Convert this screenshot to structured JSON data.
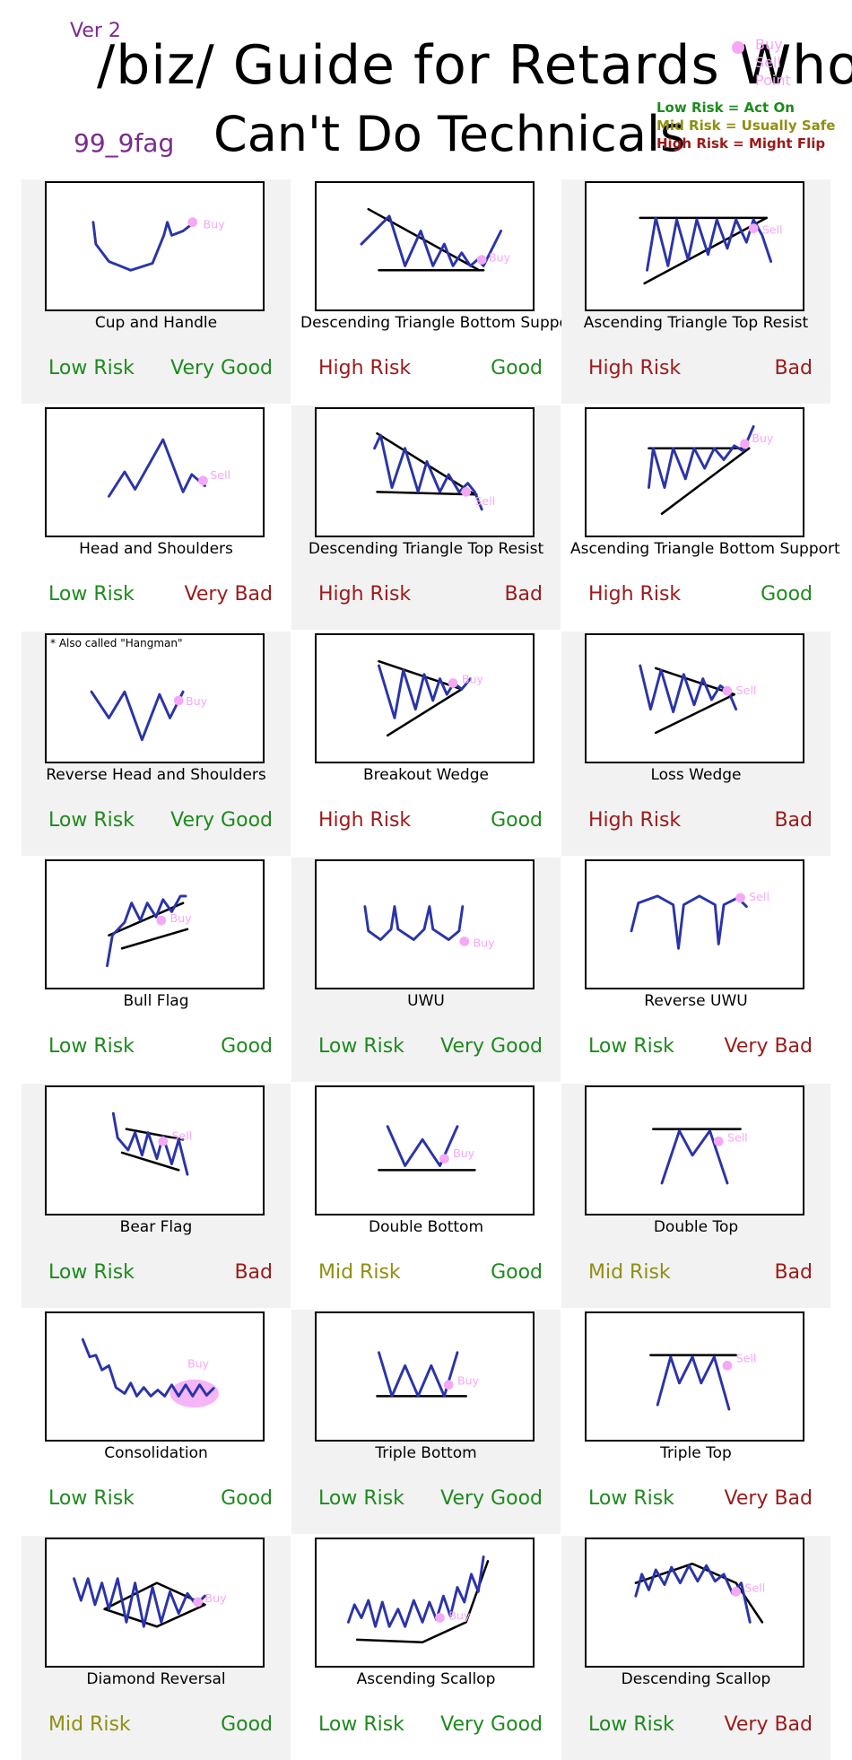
{
  "header": {
    "version": "Ver 2",
    "author": "99_9fag",
    "title_line1": "/biz/ Guide for Retards Who",
    "title_line2": "Can't Do Technicals",
    "point_legend": [
      "Buy",
      "Sell",
      "Point"
    ],
    "risk_legend": [
      {
        "text": "Low Risk = Act On",
        "color": "#1e8a1e"
      },
      {
        "text": "Mid Risk = Usually Safe",
        "color": "#8f8f12"
      },
      {
        "text": "High Risk = Might Flip",
        "color": "#9b1a1a"
      }
    ]
  },
  "colors": {
    "low": "#1e8a1e",
    "mid": "#8f8f12",
    "high": "#9b1a1a",
    "good": "#1e8a1e",
    "bad": "#9b1a1a",
    "line": "#2a34a8",
    "point": "#f5a8f5"
  },
  "patterns": [
    {
      "name": "Cup and Handle",
      "risk": "Low Risk",
      "risk_level": "low",
      "verdict": "Very Good",
      "verdict_kind": "good",
      "signal": "Buy"
    },
    {
      "name": "Descending Triangle Bottom Support",
      "risk": "High Risk",
      "risk_level": "high",
      "verdict": "Good",
      "verdict_kind": "good",
      "signal": "Buy"
    },
    {
      "name": "Ascending Triangle Top Resist",
      "risk": "High Risk",
      "risk_level": "high",
      "verdict": "Bad",
      "verdict_kind": "bad",
      "signal": "Sell"
    },
    {
      "name": "Head and Shoulders",
      "risk": "Low Risk",
      "risk_level": "low",
      "verdict": "Very Bad",
      "verdict_kind": "bad",
      "signal": "Sell"
    },
    {
      "name": "Descending Triangle Top Resist",
      "risk": "High Risk",
      "risk_level": "high",
      "verdict": "Bad",
      "verdict_kind": "bad",
      "signal": "Sell"
    },
    {
      "name": "Ascending Triangle Bottom Support",
      "risk": "High Risk",
      "risk_level": "high",
      "verdict": "Good",
      "verdict_kind": "good",
      "signal": "Buy"
    },
    {
      "name": "Reverse Head and Shoulders",
      "risk": "Low Risk",
      "risk_level": "low",
      "verdict": "Very Good",
      "verdict_kind": "good",
      "signal": "Buy",
      "note": "* Also called \"Hangman\""
    },
    {
      "name": "Breakout Wedge",
      "risk": "High Risk",
      "risk_level": "high",
      "verdict": "Good",
      "verdict_kind": "good",
      "signal": "Buy"
    },
    {
      "name": "Loss Wedge",
      "risk": "High Risk",
      "risk_level": "high",
      "verdict": "Bad",
      "verdict_kind": "bad",
      "signal": "Sell"
    },
    {
      "name": "Bull Flag",
      "risk": "Low Risk",
      "risk_level": "low",
      "verdict": "Good",
      "verdict_kind": "good",
      "signal": "Buy"
    },
    {
      "name": "UWU",
      "risk": "Low Risk",
      "risk_level": "low",
      "verdict": "Very Good",
      "verdict_kind": "good",
      "signal": "Buy"
    },
    {
      "name": "Reverse UWU",
      "risk": "Low Risk",
      "risk_level": "low",
      "verdict": "Very Bad",
      "verdict_kind": "bad",
      "signal": "Sell"
    },
    {
      "name": "Bear Flag",
      "risk": "Low Risk",
      "risk_level": "low",
      "verdict": "Bad",
      "verdict_kind": "bad",
      "signal": "Sell"
    },
    {
      "name": "Double Bottom",
      "risk": "Mid Risk",
      "risk_level": "mid",
      "verdict": "Good",
      "verdict_kind": "good",
      "signal": "Buy"
    },
    {
      "name": "Double Top",
      "risk": "Mid Risk",
      "risk_level": "mid",
      "verdict": "Bad",
      "verdict_kind": "bad",
      "signal": "Sell"
    },
    {
      "name": "Consolidation",
      "risk": "Low Risk",
      "risk_level": "low",
      "verdict": "Good",
      "verdict_kind": "good",
      "signal": "Buy"
    },
    {
      "name": "Triple Bottom",
      "risk": "Low Risk",
      "risk_level": "low",
      "verdict": "Very Good",
      "verdict_kind": "good",
      "signal": "Buy"
    },
    {
      "name": "Triple Top",
      "risk": "Low Risk",
      "risk_level": "low",
      "verdict": "Very Bad",
      "verdict_kind": "bad",
      "signal": "Sell"
    },
    {
      "name": "Diamond Reversal",
      "risk": "Mid Risk",
      "risk_level": "mid",
      "verdict": "Good",
      "verdict_kind": "good",
      "signal": "Buy"
    },
    {
      "name": "Ascending Scallop",
      "risk": "Low Risk",
      "risk_level": "low",
      "verdict": "Very Good",
      "verdict_kind": "good",
      "signal": "Buy"
    },
    {
      "name": "Descending Scallop",
      "risk": "Low Risk",
      "risk_level": "low",
      "verdict": "Very Bad",
      "verdict_kind": "bad",
      "signal": "Sell"
    }
  ]
}
